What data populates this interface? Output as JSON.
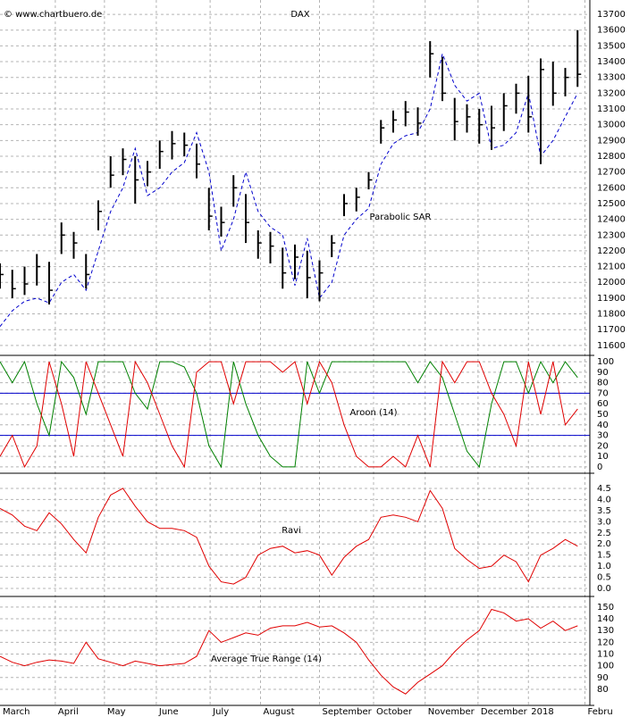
{
  "chart_data": [
    {
      "type": "ohlc",
      "title": "DAX",
      "watermark": "© www.chartbuero.de",
      "color": "#000000",
      "x": [
        0,
        5,
        10,
        15,
        20,
        25,
        30,
        35,
        40,
        45,
        50,
        55,
        60,
        65,
        70,
        75,
        80,
        85,
        90,
        95,
        100,
        105,
        110,
        115,
        120,
        125,
        130,
        135,
        140,
        145,
        150,
        155,
        160,
        165,
        170,
        175,
        180,
        185,
        190,
        195,
        200,
        205,
        210,
        215,
        220,
        225,
        230,
        235
      ],
      "high": [
        12120,
        12080,
        12100,
        12180,
        12130,
        12380,
        12320,
        12180,
        12520,
        12800,
        12850,
        12800,
        12770,
        12900,
        12960,
        12950,
        12880,
        12600,
        12480,
        12680,
        12560,
        12330,
        12320,
        12220,
        12240,
        12200,
        12140,
        12300,
        12560,
        12600,
        12700,
        13030,
        13090,
        13150,
        13110,
        13530,
        13430,
        13170,
        13130,
        13100,
        13120,
        13200,
        13260,
        13310,
        13420,
        13400,
        13360,
        13600
      ],
      "low": [
        11960,
        11900,
        11920,
        11980,
        11860,
        12180,
        12150,
        11960,
        12330,
        12600,
        12680,
        12500,
        12610,
        12720,
        12780,
        12800,
        12660,
        12330,
        12290,
        12480,
        12250,
        12150,
        12120,
        11960,
        12020,
        11900,
        11880,
        12160,
        12420,
        12450,
        12590,
        12880,
        12950,
        12990,
        12930,
        13300,
        13150,
        12900,
        12950,
        12880,
        12840,
        12960,
        13070,
        12950,
        12750,
        13120,
        13180,
        13240
      ],
      "close": [
        12050,
        11960,
        11990,
        12100,
        11950,
        12300,
        12250,
        12050,
        12450,
        12680,
        12780,
        12650,
        12700,
        12830,
        12880,
        12870,
        12750,
        12420,
        12380,
        12600,
        12380,
        12250,
        12230,
        12060,
        12160,
        12030,
        12060,
        12250,
        12500,
        12540,
        12650,
        12980,
        13030,
        13080,
        13010,
        13450,
        13200,
        13020,
        13050,
        13000,
        12980,
        13120,
        13200,
        13050,
        13350,
        13200,
        13300,
        13320
      ],
      "sar": {
        "name": "Parabolic SAR",
        "color": "#0000cc",
        "values": [
          11720,
          11820,
          11880,
          11900,
          11870,
          12000,
          12050,
          11950,
          12200,
          12450,
          12600,
          12850,
          12550,
          12600,
          12700,
          12760,
          12950,
          12700,
          12200,
          12400,
          12700,
          12450,
          12350,
          12300,
          11980,
          12280,
          11900,
          12000,
          12300,
          12400,
          12470,
          12750,
          12880,
          12930,
          12950,
          13100,
          13450,
          13250,
          13150,
          13200,
          12850,
          12870,
          12950,
          13200,
          12800,
          12900,
          13050,
          13200
        ]
      },
      "xlim": [
        0,
        240
      ],
      "xticks": [
        {
          "value": 0,
          "label": "March"
        },
        {
          "value": 22.5,
          "label": "April"
        },
        {
          "value": 42.5,
          "label": "May"
        },
        {
          "value": 63.6,
          "label": "June"
        },
        {
          "value": 85.5,
          "label": "July"
        },
        {
          "value": 106,
          "label": "August"
        },
        {
          "value": 130,
          "label": "September"
        },
        {
          "value": 152,
          "label": "October"
        },
        {
          "value": 173,
          "label": "November"
        },
        {
          "value": 194.5,
          "label": "December"
        },
        {
          "value": 215,
          "label": "2018"
        },
        {
          "value": 238,
          "label": "Febru"
        }
      ],
      "ylim": [
        11537,
        13791
      ],
      "yticks": [
        11600,
        11700,
        11800,
        11900,
        12000,
        12100,
        12200,
        12300,
        12400,
        12500,
        12600,
        12700,
        12800,
        12900,
        13000,
        13100,
        13200,
        13300,
        13400,
        13500,
        13600,
        13700
      ],
      "grid": true
    },
    {
      "type": "line",
      "annotation": "Aroon (14)",
      "series": [
        {
          "color": "#008000",
          "values": [
            100,
            80,
            100,
            60,
            30,
            100,
            85,
            50,
            100,
            100,
            100,
            70,
            55,
            100,
            100,
            95,
            70,
            20,
            0,
            100,
            60,
            30,
            10,
            0,
            0,
            100,
            70,
            100,
            100,
            100,
            100,
            100,
            100,
            100,
            80,
            100,
            85,
            50,
            15,
            0,
            60,
            100,
            100,
            70,
            100,
            80,
            100,
            85
          ]
        },
        {
          "color": "#e00000",
          "values": [
            10,
            30,
            0,
            20,
            100,
            60,
            10,
            100,
            70,
            40,
            10,
            100,
            80,
            50,
            20,
            0,
            90,
            100,
            100,
            60,
            100,
            100,
            100,
            90,
            100,
            60,
            100,
            80,
            40,
            10,
            0,
            0,
            10,
            0,
            30,
            0,
            100,
            80,
            100,
            100,
            70,
            50,
            20,
            100,
            50,
            100,
            40,
            55
          ]
        }
      ],
      "reference_lines": [
        70,
        30
      ],
      "reference_color": "#0000cc",
      "ylim": [
        -6,
        106
      ],
      "yticks": [
        0,
        10,
        20,
        30,
        40,
        50,
        60,
        70,
        80,
        90,
        100
      ],
      "grid": true
    },
    {
      "type": "line",
      "annotation": "Ravi",
      "series": [
        {
          "color": "#e00000",
          "values": [
            3.6,
            3.3,
            2.8,
            2.6,
            3.4,
            2.9,
            2.2,
            1.6,
            3.2,
            4.2,
            4.5,
            3.7,
            3.0,
            2.7,
            2.7,
            2.6,
            2.3,
            1.0,
            0.3,
            0.2,
            0.5,
            1.5,
            1.8,
            1.9,
            1.6,
            1.7,
            1.5,
            0.6,
            1.4,
            1.9,
            2.2,
            3.2,
            3.3,
            3.2,
            3.0,
            4.4,
            3.6,
            1.8,
            1.3,
            0.9,
            1.0,
            1.5,
            1.2,
            0.3,
            1.5,
            1.8,
            2.2,
            1.9
          ]
        }
      ],
      "ylim": [
        -0.36,
        5.18
      ],
      "yticks": [
        {
          "value": 0,
          "label": "0.0"
        },
        0.5,
        {
          "value": 1,
          "label": "1.0"
        },
        1.5,
        {
          "value": 2,
          "label": "2.0"
        },
        2.5,
        {
          "value": 3,
          "label": "3.0"
        },
        3.5,
        {
          "value": 4,
          "label": "4.0"
        },
        4.5
      ],
      "grid": true
    },
    {
      "type": "line",
      "annotation": "Average True Range (14)",
      "series": [
        {
          "color": "#e00000",
          "values": [
            108,
            103,
            100,
            103,
            105,
            104,
            102,
            120,
            106,
            103,
            100,
            104,
            102,
            100,
            101,
            102,
            108,
            130,
            120,
            124,
            128,
            126,
            132,
            134,
            134,
            137,
            133,
            134,
            128,
            120,
            105,
            92,
            82,
            76,
            86,
            93,
            100,
            112,
            122,
            130,
            148,
            145,
            138,
            140,
            132,
            138,
            130,
            134
          ]
        }
      ],
      "ylim": [
        66.3,
        159
      ],
      "yticks": [
        80,
        90,
        100,
        110,
        120,
        130,
        140,
        150
      ],
      "grid": true
    }
  ]
}
